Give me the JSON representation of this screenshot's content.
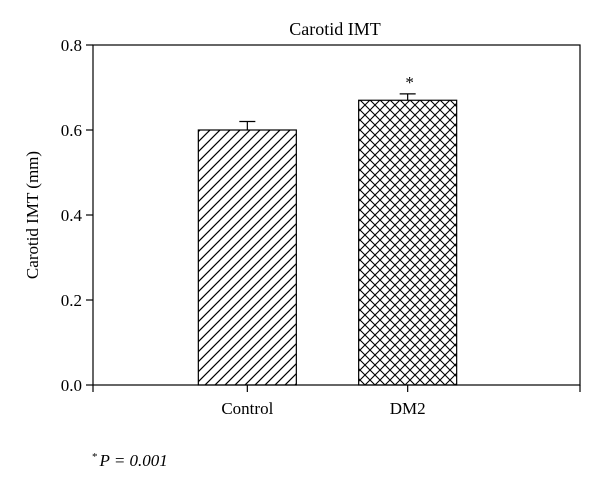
{
  "chart_data": {
    "type": "bar",
    "title": "Carotid IMT",
    "xlabel": "",
    "ylabel": "Carotid IMT (mm)",
    "categories": [
      "Control",
      "DM2"
    ],
    "values": [
      0.6,
      0.67
    ],
    "errors": [
      0.02,
      0.015
    ],
    "ylim": [
      0,
      0.8
    ],
    "yticks": [
      "0.0",
      "0.2",
      "0.4",
      "0.6",
      "0.8"
    ],
    "ytick_values": [
      0,
      0.2,
      0.4,
      0.6,
      0.8
    ],
    "patterns": [
      "diagonal-hatch",
      "cross-hatch"
    ],
    "annotations": [
      {
        "category": "DM2",
        "text": "*"
      }
    ],
    "grid": false,
    "legend": "none"
  },
  "footnote": {
    "symbol": "*",
    "text": "P = 0.001"
  }
}
